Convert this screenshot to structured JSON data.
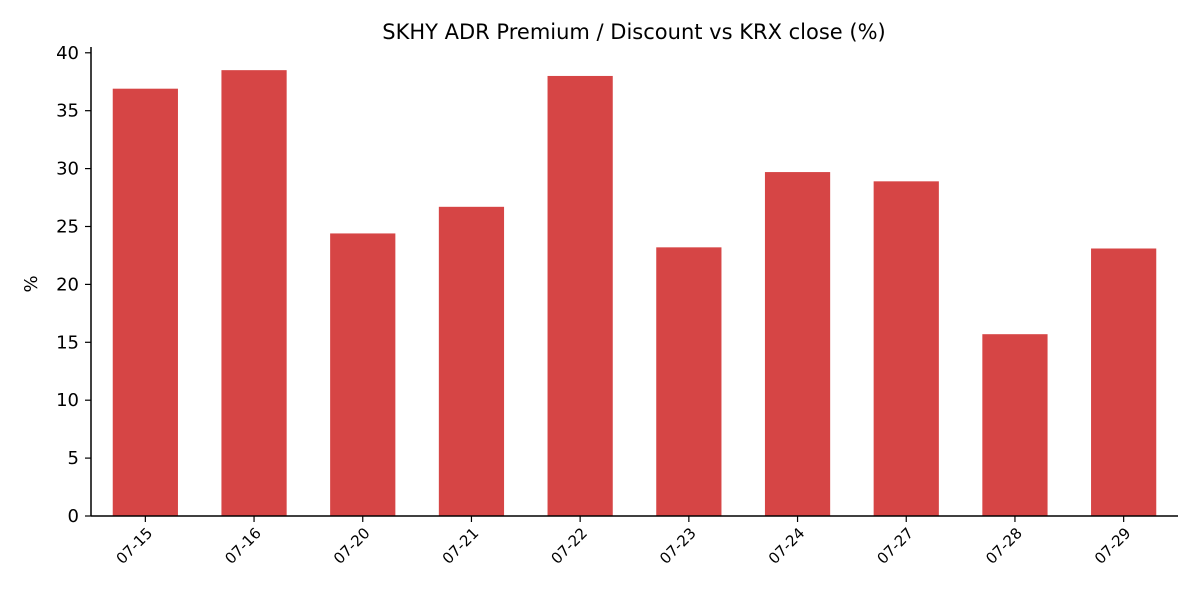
{
  "chart_data": {
    "type": "bar",
    "title": "SKHY ADR Premium / Discount vs KRX close (%)",
    "xlabel": "",
    "ylabel": "%",
    "categories": [
      "07-15",
      "07-16",
      "07-20",
      "07-21",
      "07-22",
      "07-23",
      "07-24",
      "07-27",
      "07-28",
      "07-29"
    ],
    "series": [
      {
        "values": [
          36.9,
          38.5,
          24.4,
          26.7,
          38.0,
          23.2,
          29.7,
          28.9,
          15.7,
          23.1
        ],
        "color": "#d64545"
      }
    ],
    "ylim": [
      0,
      40.5
    ],
    "yticks": [
      0,
      5,
      10,
      15,
      20,
      25,
      30,
      35,
      40
    ],
    "grid": false,
    "legend": "none"
  }
}
